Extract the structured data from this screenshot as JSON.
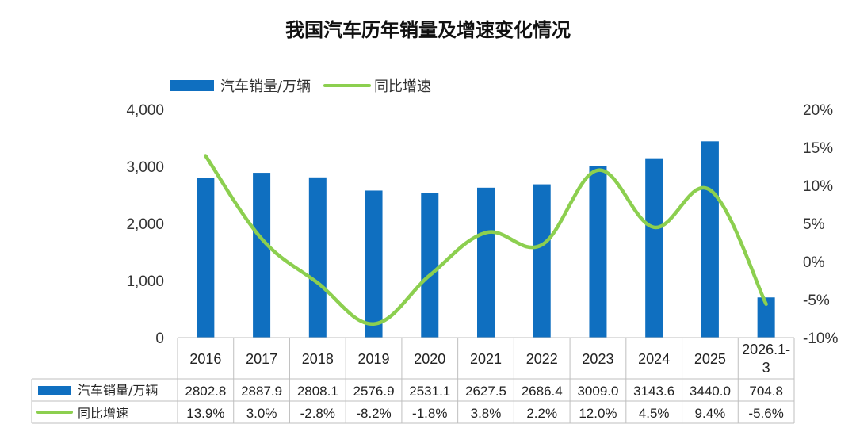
{
  "chart_data": {
    "type": "bar+line",
    "title": "我国汽车历年销量及增速变化情况",
    "categories": [
      "2016",
      "2017",
      "2018",
      "2019",
      "2020",
      "2021",
      "2022",
      "2023",
      "2024",
      "2025",
      "2026.1-3"
    ],
    "series": [
      {
        "name": "汽车销量/万辆",
        "type": "bar",
        "axis": "left",
        "values": [
          2802.8,
          2887.9,
          2808.1,
          2576.9,
          2531.1,
          2627.5,
          2686.4,
          3009.0,
          3143.6,
          3440.0,
          704.8
        ],
        "labels": [
          "2802.8",
          "2887.9",
          "2808.1",
          "2576.9",
          "2531.1",
          "2627.5",
          "2686.4",
          "3009.0",
          "3143.6",
          "3440.0",
          "704.8"
        ]
      },
      {
        "name": "同比增速",
        "type": "line",
        "axis": "right",
        "values": [
          13.9,
          3.0,
          -2.8,
          -8.2,
          -1.8,
          3.8,
          2.2,
          12.0,
          4.5,
          9.4,
          -5.6
        ],
        "labels": [
          "13.9%",
          "3.0%",
          "-2.8%",
          "-8.2%",
          "-1.8%",
          "3.8%",
          "2.2%",
          "12.0%",
          "4.5%",
          "9.4%",
          "-5.6%"
        ]
      }
    ],
    "ylim_left": [
      0,
      4000
    ],
    "yticks_left": [
      0,
      1000,
      2000,
      3000,
      4000
    ],
    "yticklabels_left": [
      "0",
      "1,000",
      "2,000",
      "3,000",
      "4,000"
    ],
    "ylim_right": [
      -10,
      20
    ],
    "yticks_right": [
      -10,
      -5,
      0,
      5,
      10,
      15,
      20
    ],
    "yticklabels_right": [
      "-10%",
      "-5%",
      "0%",
      "5%",
      "10%",
      "15%",
      "20%"
    ],
    "legend_position": "top-left",
    "data_table": true,
    "colors": {
      "bar": "#0f6fc0",
      "line": "#8ccf4f",
      "axis": "#bfbfbf"
    }
  }
}
